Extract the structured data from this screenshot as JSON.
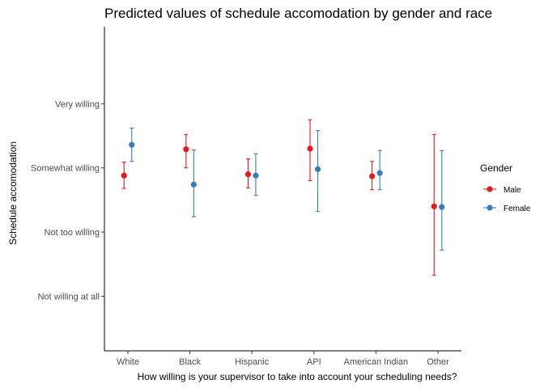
{
  "chart_data": {
    "type": "scatter",
    "title": "Predicted values of schedule accomodation by gender and race",
    "xlabel": "How willing is your supervisor to take into account your scheduling needs?",
    "ylabel": "Schedule accomodation",
    "categories": [
      "White",
      "Black",
      "Hispanic",
      "API",
      "American Indian",
      "Other"
    ],
    "y_ticks": [
      {
        "value": 1,
        "label": "Not willing at all"
      },
      {
        "value": 2,
        "label": "Not too willing"
      },
      {
        "value": 3,
        "label": "Somewhat willing"
      },
      {
        "value": 4,
        "label": "Very willing"
      }
    ],
    "ylim": [
      0.15,
      5.2
    ],
    "grid": false,
    "legend": {
      "title": "Gender",
      "position": "right"
    },
    "series": [
      {
        "name": "Male",
        "color": "#e41a1c",
        "values": [
          2.88,
          3.29,
          2.9,
          3.3,
          2.87,
          2.4
        ],
        "lower": [
          2.68,
          3.0,
          2.69,
          2.8,
          2.66,
          1.33
        ],
        "upper": [
          3.09,
          3.52,
          3.14,
          3.75,
          3.1,
          3.52
        ]
      },
      {
        "name": "Female",
        "color": "#377eb8",
        "values": [
          3.36,
          2.74,
          2.88,
          2.98,
          2.92,
          2.39
        ],
        "lower": [
          3.1,
          2.24,
          2.57,
          2.32,
          2.66,
          1.72
        ],
        "upper": [
          3.62,
          3.28,
          3.22,
          3.58,
          3.27,
          3.27
        ]
      }
    ]
  }
}
